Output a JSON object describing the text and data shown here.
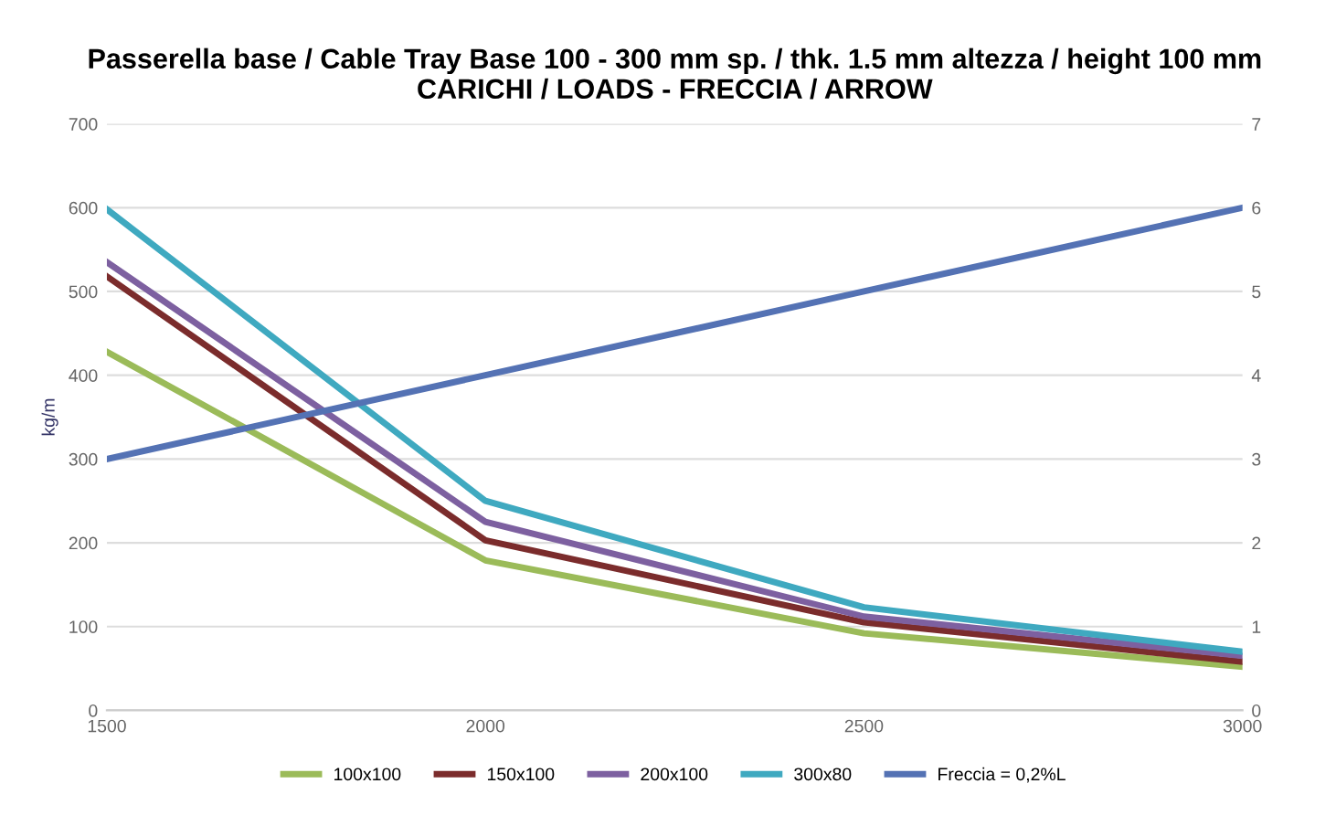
{
  "chart_data": {
    "type": "line",
    "title": "Passerella base / Cable Tray Base 100 - 300 mm sp. / thk. 1.5 mm altezza / height 100 mm\nCARICHI / LOADS - FRECCIA / ARROW",
    "ylabel": "kg/m",
    "categories": [
      "1500",
      "2000",
      "2500",
      "3000"
    ],
    "series": [
      {
        "name": "100x100",
        "color": "#9bbb59",
        "values": [
          428,
          179,
          92,
          52
        ]
      },
      {
        "name": "150x100",
        "color": "#7b2c2c",
        "values": [
          518,
          203,
          105,
          58
        ]
      },
      {
        "name": "200x100",
        "color": "#7d60a0",
        "values": [
          535,
          225,
          112,
          65
        ]
      },
      {
        "name": "300x80",
        "color": "#3fa9c0",
        "values": [
          598,
          250,
          123,
          70
        ]
      },
      {
        "name": "Freccia = 0,2%L",
        "color": "#5472b4",
        "values": [
          3,
          4,
          5,
          6
        ],
        "axis": "y2"
      }
    ],
    "ylim": [
      0,
      700
    ],
    "yticks": [
      0,
      100,
      200,
      300,
      400,
      500,
      600,
      700
    ],
    "y2lim": [
      0,
      7
    ],
    "y2ticks": [
      0,
      1,
      2,
      3,
      4,
      5,
      6,
      7
    ],
    "grid": "y",
    "legend": "bottom",
    "marker": "none",
    "line_style": "solid"
  }
}
